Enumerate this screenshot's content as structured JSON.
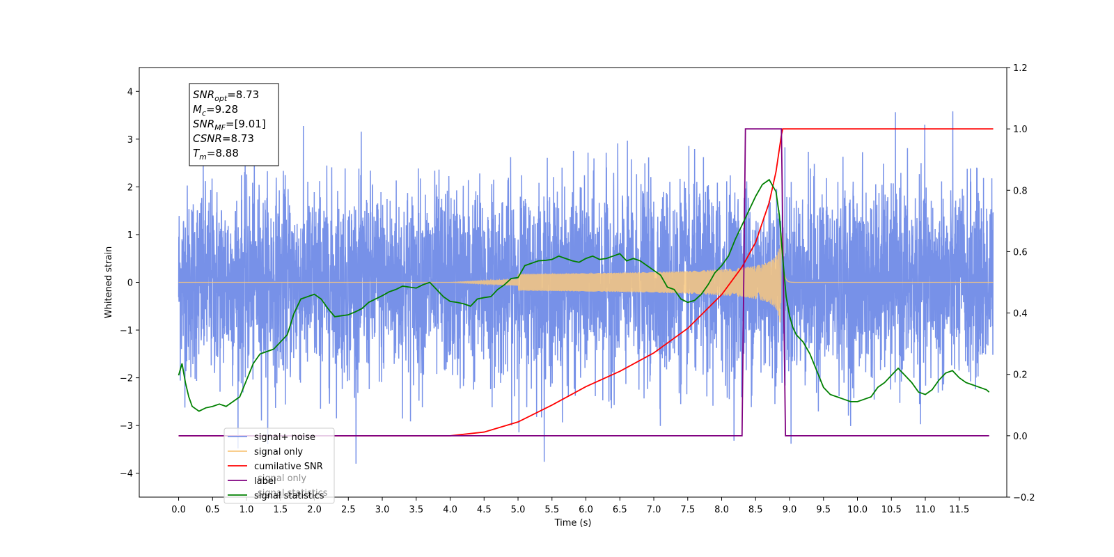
{
  "chart_data": {
    "type": "line",
    "xlabel": "Time (s)",
    "ylabel": "Whitened strain",
    "xlim": [
      -0.58,
      12.2
    ],
    "ylim": [
      -4.5,
      4.5
    ],
    "ylim_right": [
      -0.2,
      1.2
    ],
    "x_ticks": [
      "0.0",
      "0.5",
      "1.0",
      "1.5",
      "2.0",
      "2.5",
      "3.0",
      "3.5",
      "4.0",
      "4.5",
      "5.0",
      "5.5",
      "6.0",
      "6.5",
      "7.0",
      "7.5",
      "8.0",
      "8.5",
      "9.0",
      "9.5",
      "10.0",
      "10.5",
      "11.0",
      "11.5"
    ],
    "y_ticks_left": [
      "4",
      "3",
      "2",
      "1",
      "0",
      "−1",
      "−2",
      "−3",
      "−4"
    ],
    "y_ticks_right": [
      "1.2",
      "1.0",
      "0.8",
      "0.6",
      "0.4",
      "0.2",
      "0.0",
      "−0.2"
    ],
    "legend_position": "lower-left",
    "annotation": {
      "lines": [
        {
          "var": "SNR",
          "sub": "opt",
          "value": "=8.73"
        },
        {
          "var": "M",
          "sub": "c",
          "value": "=9.28"
        },
        {
          "var": "SNR",
          "sub": "MF",
          "value": "=[9.01]"
        },
        {
          "var": "CSNR",
          "sub": "",
          "value": "=8.73"
        },
        {
          "var": "T",
          "sub": "m",
          "value": "=8.88"
        }
      ]
    },
    "series": [
      {
        "name": "signal+ noise",
        "color": "#7791e8",
        "axis": "left",
        "kind": "noise",
        "envelope_peak_y": 4.1,
        "envelope_trough_y": -3.8,
        "x_range": [
          0.0,
          12.0
        ]
      },
      {
        "name": "signal only",
        "color": "#f8c77e",
        "axis": "left",
        "kind": "chirp",
        "merger_time": 8.88,
        "peak_amplitude": 1.05,
        "x_range": [
          0.0,
          12.0
        ]
      },
      {
        "name": "cumilative SNR",
        "color": "#ff0000",
        "axis": "right",
        "x": [
          0.0,
          4.0,
          4.5,
          5.0,
          5.5,
          6.0,
          6.5,
          7.0,
          7.5,
          8.0,
          8.3,
          8.5,
          8.7,
          8.8,
          8.88,
          8.9,
          12.0
        ],
        "y": [
          0.0,
          0.0,
          0.012,
          0.045,
          0.1,
          0.16,
          0.21,
          0.27,
          0.35,
          0.46,
          0.55,
          0.63,
          0.76,
          0.86,
          0.98,
          1.0,
          1.0
        ]
      },
      {
        "name": "label",
        "color": "#800080",
        "axis": "right",
        "x": [
          0.0,
          8.3,
          8.35,
          8.88,
          8.94,
          11.94
        ],
        "y": [
          0.0,
          0.0,
          1.0,
          1.0,
          0.0,
          0.0
        ]
      },
      {
        "name": "signal statistics",
        "color": "#008000",
        "axis": "left",
        "x": [
          0.0,
          0.05,
          0.1,
          0.15,
          0.2,
          0.3,
          0.4,
          0.5,
          0.6,
          0.7,
          0.8,
          0.9,
          1.0,
          1.1,
          1.2,
          1.3,
          1.4,
          1.5,
          1.6,
          1.7,
          1.8,
          1.9,
          2.0,
          2.1,
          2.2,
          2.3,
          2.4,
          2.5,
          2.6,
          2.7,
          2.8,
          2.9,
          3.0,
          3.1,
          3.2,
          3.3,
          3.4,
          3.5,
          3.6,
          3.7,
          3.8,
          3.9,
          4.0,
          4.1,
          4.2,
          4.3,
          4.4,
          4.5,
          4.6,
          4.7,
          4.8,
          4.9,
          5.0,
          5.1,
          5.2,
          5.3,
          5.4,
          5.5,
          5.6,
          5.7,
          5.8,
          5.9,
          6.0,
          6.1,
          6.2,
          6.3,
          6.4,
          6.5,
          6.6,
          6.7,
          6.8,
          6.9,
          7.0,
          7.1,
          7.2,
          7.3,
          7.4,
          7.5,
          7.6,
          7.7,
          7.8,
          7.9,
          8.0,
          8.1,
          8.2,
          8.3,
          8.4,
          8.5,
          8.6,
          8.7,
          8.8,
          8.85,
          8.9,
          8.95,
          9.0,
          9.05,
          9.1,
          9.2,
          9.3,
          9.4,
          9.5,
          9.6,
          9.7,
          9.8,
          9.9,
          10.0,
          10.1,
          10.2,
          10.3,
          10.4,
          10.5,
          10.6,
          10.7,
          10.8,
          10.9,
          11.0,
          11.1,
          11.2,
          11.3,
          11.4,
          11.5,
          11.6,
          11.7,
          11.8,
          11.9,
          11.94
        ],
        "y": [
          -1.95,
          -1.7,
          -2.1,
          -2.4,
          -2.6,
          -2.7,
          -2.63,
          -2.6,
          -2.55,
          -2.6,
          -2.5,
          -2.4,
          -2.05,
          -1.7,
          -1.5,
          -1.45,
          -1.4,
          -1.25,
          -1.1,
          -0.65,
          -0.35,
          -0.3,
          -0.25,
          -0.35,
          -0.55,
          -0.72,
          -0.7,
          -0.68,
          -0.62,
          -0.55,
          -0.42,
          -0.35,
          -0.28,
          -0.2,
          -0.15,
          -0.08,
          -0.1,
          -0.12,
          -0.05,
          -0.0,
          -0.15,
          -0.3,
          -0.4,
          -0.42,
          -0.45,
          -0.5,
          -0.35,
          -0.32,
          -0.3,
          -0.15,
          -0.05,
          0.08,
          0.1,
          0.35,
          0.4,
          0.45,
          0.46,
          0.48,
          0.55,
          0.5,
          0.45,
          0.42,
          0.5,
          0.55,
          0.48,
          0.5,
          0.55,
          0.6,
          0.45,
          0.5,
          0.45,
          0.35,
          0.25,
          0.15,
          -0.1,
          -0.15,
          -0.35,
          -0.42,
          -0.38,
          -0.25,
          -0.05,
          0.2,
          0.35,
          0.55,
          0.9,
          1.2,
          1.5,
          1.8,
          2.05,
          2.15,
          1.9,
          1.4,
          0.5,
          -0.3,
          -0.7,
          -0.95,
          -1.1,
          -1.25,
          -1.5,
          -1.85,
          -2.2,
          -2.35,
          -2.4,
          -2.45,
          -2.5,
          -2.5,
          -2.45,
          -2.4,
          -2.2,
          -2.1,
          -1.95,
          -1.8,
          -1.95,
          -2.1,
          -2.3,
          -2.35,
          -2.25,
          -2.05,
          -1.9,
          -1.85,
          -2.0,
          -2.1,
          -2.15,
          -2.2,
          -2.25,
          -2.3
        ]
      }
    ],
    "legend_labels": [
      "signal+ noise",
      "signal only",
      "cumilative SNR",
      "label",
      "signal statistics"
    ],
    "ghost_legend_labels": [
      "signal only",
      "signal statistics"
    ]
  }
}
